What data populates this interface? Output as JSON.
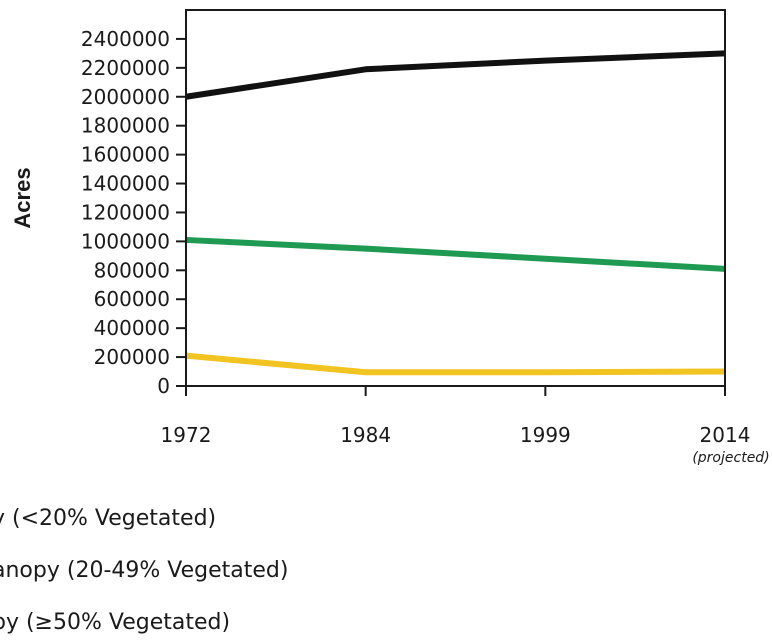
{
  "chart_data": {
    "type": "line",
    "title": "",
    "xlabel": "",
    "ylabel": "Acres",
    "categories": [
      "1972",
      "1984",
      "1999",
      "2014"
    ],
    "x_note": "(projected)",
    "ylim": [
      0,
      2600000
    ],
    "yticks": [
      "0",
      "200000",
      "400000",
      "600000",
      "800000",
      "1000000",
      "1200000",
      "1400000",
      "1600000",
      "1800000",
      "2000000",
      "2200000",
      "2400000"
    ],
    "grid": false,
    "series": [
      {
        "values": [
          2000000,
          2190000,
          2250000,
          2300000
        ],
        "color": "#111111"
      },
      {
        "values": [
          1010000,
          950000,
          880000,
          810000
        ],
        "color": "#1f9a52"
      },
      {
        "values": [
          210000,
          95000,
          95000,
          100000
        ],
        "color": "#f2c422"
      }
    ],
    "legend_position": "bottom",
    "legend": [
      "y (<20% Vegetated)",
      "anopy (20-49% Vegetated)",
      "py (≥50% Vegetated)"
    ]
  }
}
